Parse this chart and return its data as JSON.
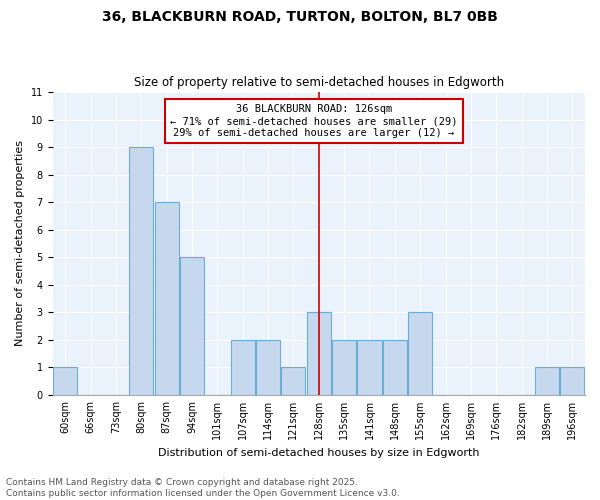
{
  "title_line1": "36, BLACKBURN ROAD, TURTON, BOLTON, BL7 0BB",
  "title_line2": "Size of property relative to semi-detached houses in Edgworth",
  "xlabel": "Distribution of semi-detached houses by size in Edgworth",
  "ylabel": "Number of semi-detached properties",
  "bin_labels": [
    "60sqm",
    "66sqm",
    "73sqm",
    "80sqm",
    "87sqm",
    "94sqm",
    "101sqm",
    "107sqm",
    "114sqm",
    "121sqm",
    "128sqm",
    "135sqm",
    "141sqm",
    "148sqm",
    "155sqm",
    "162sqm",
    "169sqm",
    "176sqm",
    "182sqm",
    "189sqm",
    "196sqm"
  ],
  "values": [
    1,
    0,
    0,
    9,
    7,
    5,
    0,
    2,
    2,
    1,
    3,
    2,
    2,
    2,
    3,
    0,
    0,
    0,
    0,
    1,
    1
  ],
  "bar_color": "#c5d8ee",
  "bar_edge_color": "#6aaed6",
  "property_bin_index": 10,
  "annotation_line1": "36 BLACKBURN ROAD: 126sqm",
  "annotation_line2": "← 71% of semi-detached houses are smaller (29)",
  "annotation_line3": "29% of semi-detached houses are larger (12) →",
  "annotation_box_facecolor": "#ffffff",
  "annotation_box_edgecolor": "#cc0000",
  "line_color": "#cc0000",
  "ylim": [
    0,
    11
  ],
  "yticks": [
    0,
    1,
    2,
    3,
    4,
    5,
    6,
    7,
    8,
    9,
    10,
    11
  ],
  "fig_facecolor": "#ffffff",
  "plot_facecolor": "#eaf2fb",
  "grid_color": "#ffffff",
  "footer_line1": "Contains HM Land Registry data © Crown copyright and database right 2025.",
  "footer_line2": "Contains public sector information licensed under the Open Government Licence v3.0.",
  "title_fontsize": 10,
  "subtitle_fontsize": 8.5,
  "ylabel_fontsize": 8,
  "xlabel_fontsize": 8,
  "tick_fontsize": 7,
  "annotation_fontsize": 7.5,
  "footer_fontsize": 6.5
}
